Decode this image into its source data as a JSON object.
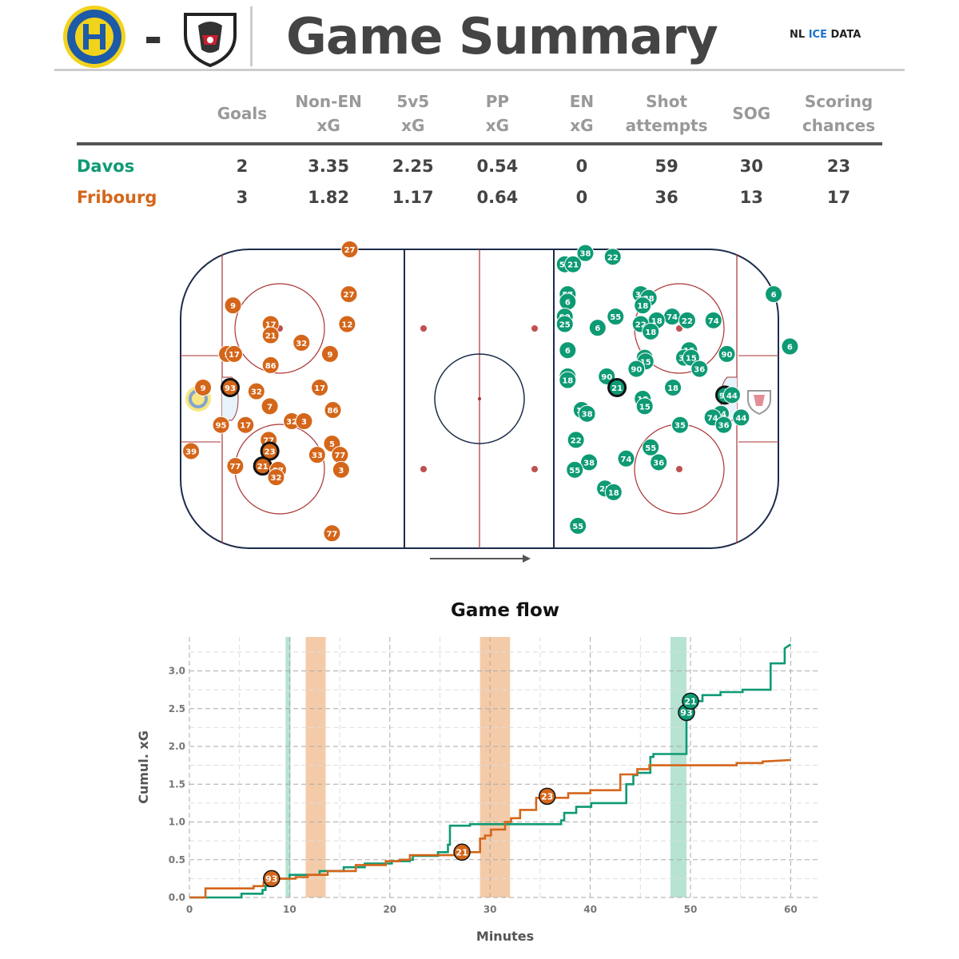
{
  "header": {
    "title": "Game Summary",
    "separator": "-",
    "brand_prefix": "NL ",
    "brand_highlight": "ICE",
    "brand_suffix": " DATA",
    "home_logo_icon": "davos-logo",
    "away_logo_icon": "fribourg-logo"
  },
  "colors": {
    "home": "#0e9a74",
    "away": "#d4661a",
    "home_band": "#b6e3d2",
    "away_band": "#f4cba9"
  },
  "stats": {
    "headers": [
      "",
      "Goals",
      "Non-EN\nxG",
      "5v5\nxG",
      "PP\nxG",
      "EN\nxG",
      "Shot\nattempts",
      "SOG",
      "Scoring\nchances"
    ],
    "rows": [
      {
        "team": "Davos",
        "values": [
          "2",
          "3.35",
          "2.25",
          "0.54",
          "0",
          "59",
          "30",
          "23"
        ]
      },
      {
        "team": "Fribourg",
        "values": [
          "3",
          "1.82",
          "1.17",
          "0.64",
          "0",
          "36",
          "13",
          "17"
        ]
      }
    ]
  },
  "rink": {
    "direction": "left-to-right",
    "away_shots": [
      {
        "n": "27",
        "x": -45.5,
        "y": -20.0
      },
      {
        "n": "27",
        "x": -45.8,
        "y": -14.0
      },
      {
        "n": "12",
        "x": -46.4,
        "y": -10.0
      },
      {
        "n": "9",
        "x": -86.4,
        "y": -12.5
      },
      {
        "n": "17",
        "x": -73.2,
        "y": -10.0
      },
      {
        "n": "21",
        "x": -73.2,
        "y": -8.5
      },
      {
        "n": "32",
        "x": -62.4,
        "y": -7.5
      },
      {
        "n": "9",
        "x": -88.5,
        "y": -6.0
      },
      {
        "n": "17",
        "x": -86.0,
        "y": -6.0
      },
      {
        "n": "9",
        "x": -52.4,
        "y": -6.0
      },
      {
        "n": "86",
        "x": -73.2,
        "y": -4.5
      },
      {
        "n": "17",
        "x": -56.0,
        "y": -1.5
      },
      {
        "n": "9",
        "x": -96.9,
        "y": -1.5
      },
      {
        "n": "93",
        "x": -87.4,
        "y": -1.5,
        "goal": true
      },
      {
        "n": "32",
        "x": -78.2,
        "y": -1.0
      },
      {
        "n": "7",
        "x": -73.5,
        "y": 1.0
      },
      {
        "n": "86",
        "x": -51.4,
        "y": 1.5
      },
      {
        "n": "32",
        "x": -65.8,
        "y": 3.0
      },
      {
        "n": "3",
        "x": -61.5,
        "y": 3.0
      },
      {
        "n": "95",
        "x": -90.6,
        "y": 3.5
      },
      {
        "n": "17",
        "x": -82.0,
        "y": 3.5
      },
      {
        "n": "77",
        "x": -73.9,
        "y": 5.5
      },
      {
        "n": "5",
        "x": -51.7,
        "y": 6.0
      },
      {
        "n": "23",
        "x": -73.5,
        "y": 7.0,
        "goal": true
      },
      {
        "n": "39",
        "x": -101.1,
        "y": 7.0
      },
      {
        "n": "33",
        "x": -56.9,
        "y": 7.5
      },
      {
        "n": "77",
        "x": -48.9,
        "y": 7.5
      },
      {
        "n": "21",
        "x": -76.0,
        "y": 9.0,
        "goal": true
      },
      {
        "n": "77",
        "x": -85.6,
        "y": 9.0
      },
      {
        "n": "97",
        "x": -70.6,
        "y": 9.5
      },
      {
        "n": "3",
        "x": -48.5,
        "y": 9.5
      },
      {
        "n": "32",
        "x": -71.3,
        "y": 10.5
      },
      {
        "n": "77",
        "x": -51.7,
        "y": 18.0
      }
    ],
    "home_shots": [
      {
        "n": "38",
        "x": 37.1,
        "y": -19.5
      },
      {
        "n": "22",
        "x": 46.7,
        "y": -19.0
      },
      {
        "n": "57",
        "x": 29.9,
        "y": -18.0
      },
      {
        "n": "21",
        "x": 32.8,
        "y": -18.0
      },
      {
        "n": "57",
        "x": 30.9,
        "y": -14.0
      },
      {
        "n": "6",
        "x": 30.9,
        "y": -13.0
      },
      {
        "n": "36",
        "x": 56.5,
        "y": -14.0
      },
      {
        "n": "38",
        "x": 59.3,
        "y": -13.5
      },
      {
        "n": "6",
        "x": 103.1,
        "y": -14.0
      },
      {
        "n": "18",
        "x": 57.2,
        "y": -12.5
      },
      {
        "n": "55",
        "x": 47.7,
        "y": -11.0
      },
      {
        "n": "74",
        "x": 67.5,
        "y": -11.0
      },
      {
        "n": "18",
        "x": 62.1,
        "y": -10.5
      },
      {
        "n": "25",
        "x": 72.8,
        "y": -10.5
      },
      {
        "n": "22",
        "x": 72.8,
        "y": -10.5
      },
      {
        "n": "74",
        "x": 82.0,
        "y": -10.5
      },
      {
        "n": "90",
        "x": 29.9,
        "y": -11.0
      },
      {
        "n": "25",
        "x": 29.9,
        "y": -10.0
      },
      {
        "n": "22",
        "x": 56.5,
        "y": -10.0
      },
      {
        "n": "6",
        "x": 41.4,
        "y": -9.5
      },
      {
        "n": "18",
        "x": 60.0,
        "y": -9.0
      },
      {
        "n": "15",
        "x": 73.5,
        "y": -6.5
      },
      {
        "n": "6",
        "x": 108.8,
        "y": -7.0
      },
      {
        "n": "38",
        "x": 71.7,
        "y": -5.5
      },
      {
        "n": "15",
        "x": 74.2,
        "y": -5.5
      },
      {
        "n": "90",
        "x": 86.7,
        "y": -6.0
      },
      {
        "n": "6",
        "x": 30.9,
        "y": -6.5
      },
      {
        "n": "15",
        "x": 57.9,
        "y": -5.5
      },
      {
        "n": "15",
        "x": 58.2,
        "y": -5.0
      },
      {
        "n": "90",
        "x": 55.0,
        "y": -4.0
      },
      {
        "n": "36",
        "x": 77.1,
        "y": -4.0
      },
      {
        "n": "6",
        "x": 30.9,
        "y": -3.0
      },
      {
        "n": "18",
        "x": 30.9,
        "y": -2.5
      },
      {
        "n": "90",
        "x": 44.6,
        "y": -3.0
      },
      {
        "n": "21",
        "x": 48.2,
        "y": -1.5,
        "goal": true
      },
      {
        "n": "18",
        "x": 67.8,
        "y": -1.5
      },
      {
        "n": "93",
        "x": 86.0,
        "y": -0.5,
        "goal": true
      },
      {
        "n": "44",
        "x": 88.5,
        "y": -0.5
      },
      {
        "n": "18",
        "x": 57.2,
        "y": 0.0
      },
      {
        "n": "15",
        "x": 57.9,
        "y": 1.0
      },
      {
        "n": "12",
        "x": 35.8,
        "y": 1.5
      },
      {
        "n": "38",
        "x": 37.7,
        "y": 2.0
      },
      {
        "n": "44",
        "x": 84.6,
        "y": 2.0
      },
      {
        "n": "44",
        "x": 91.7,
        "y": 2.5
      },
      {
        "n": "74",
        "x": 81.7,
        "y": 2.5
      },
      {
        "n": "35",
        "x": 70.3,
        "y": 3.5
      },
      {
        "n": "36",
        "x": 85.6,
        "y": 3.5
      },
      {
        "n": "22",
        "x": 33.8,
        "y": 5.5
      },
      {
        "n": "55",
        "x": 60.0,
        "y": 6.5
      },
      {
        "n": "74",
        "x": 51.4,
        "y": 8.0
      },
      {
        "n": "38",
        "x": 38.4,
        "y": 8.5
      },
      {
        "n": "36",
        "x": 62.8,
        "y": 8.5
      },
      {
        "n": "55",
        "x": 33.4,
        "y": 9.5
      },
      {
        "n": "25",
        "x": 44.0,
        "y": 12.0
      },
      {
        "n": "18",
        "x": 47.0,
        "y": 12.5
      },
      {
        "n": "55",
        "x": 34.5,
        "y": 17.0
      }
    ]
  },
  "chart_data": {
    "type": "line",
    "title": "Game flow",
    "xlabel": "Minutes",
    "ylabel": "Cumul. xG",
    "xlim": [
      0,
      63
    ],
    "ylim": [
      0,
      3.45
    ],
    "xticks": [
      0,
      10,
      20,
      30,
      40,
      50,
      60
    ],
    "yticks": [
      0.0,
      0.5,
      1.0,
      1.5,
      2.0,
      2.5,
      3.0
    ],
    "grid": true,
    "home_pp": [
      [
        9.6,
        10.1
      ],
      [
        48.0,
        49.6
      ]
    ],
    "away_pp": [
      [
        11.6,
        13.6
      ],
      [
        29.0,
        32.0
      ]
    ],
    "series": [
      {
        "team": "home",
        "points": [
          [
            0,
            0
          ],
          [
            5.2,
            0.0
          ],
          [
            5.2,
            0.05
          ],
          [
            7.3,
            0.05
          ],
          [
            7.3,
            0.1
          ],
          [
            7.6,
            0.1
          ],
          [
            7.6,
            0.15
          ],
          [
            7.9,
            0.15
          ],
          [
            7.9,
            0.2
          ],
          [
            8.2,
            0.2
          ],
          [
            8.2,
            0.25
          ],
          [
            10.0,
            0.25
          ],
          [
            10.0,
            0.3
          ],
          [
            13.0,
            0.3
          ],
          [
            13.0,
            0.35
          ],
          [
            15.4,
            0.35
          ],
          [
            15.4,
            0.4
          ],
          [
            17.5,
            0.4
          ],
          [
            17.5,
            0.45
          ],
          [
            20.2,
            0.45
          ],
          [
            20.2,
            0.48
          ],
          [
            22.0,
            0.48
          ],
          [
            22.0,
            0.5
          ],
          [
            22.3,
            0.5
          ],
          [
            22.3,
            0.55
          ],
          [
            24.8,
            0.55
          ],
          [
            24.8,
            0.6
          ],
          [
            25.8,
            0.6
          ],
          [
            25.8,
            0.7
          ],
          [
            26.0,
            0.7
          ],
          [
            26.0,
            0.95
          ],
          [
            28.0,
            0.95
          ],
          [
            28.0,
            0.97
          ],
          [
            37.1,
            0.97
          ],
          [
            37.1,
            1.02
          ],
          [
            37.4,
            1.02
          ],
          [
            37.4,
            1.12
          ],
          [
            38.6,
            1.12
          ],
          [
            38.6,
            1.2
          ],
          [
            40.1,
            1.2
          ],
          [
            40.1,
            1.25
          ],
          [
            43.6,
            1.25
          ],
          [
            43.6,
            1.5
          ],
          [
            44.3,
            1.5
          ],
          [
            44.3,
            1.62
          ],
          [
            44.7,
            1.62
          ],
          [
            44.7,
            1.65
          ],
          [
            46.0,
            1.65
          ],
          [
            46.0,
            1.86
          ],
          [
            46.3,
            1.86
          ],
          [
            46.3,
            1.9
          ],
          [
            49.6,
            1.9
          ],
          [
            49.6,
            2.45
          ],
          [
            50.0,
            2.45
          ],
          [
            50.0,
            2.6
          ],
          [
            51.2,
            2.6
          ],
          [
            51.2,
            2.68
          ],
          [
            53.0,
            2.68
          ],
          [
            53.0,
            2.72
          ],
          [
            55.2,
            2.72
          ],
          [
            55.2,
            2.75
          ],
          [
            58.0,
            2.75
          ],
          [
            58.0,
            3.1
          ],
          [
            59.4,
            3.1
          ],
          [
            59.4,
            3.3
          ],
          [
            60.0,
            3.35
          ]
        ]
      },
      {
        "team": "away",
        "points": [
          [
            0,
            0
          ],
          [
            1.6,
            0.0
          ],
          [
            1.6,
            0.12
          ],
          [
            6.4,
            0.12
          ],
          [
            6.4,
            0.15
          ],
          [
            7.4,
            0.15
          ],
          [
            7.4,
            0.2
          ],
          [
            8.2,
            0.2
          ],
          [
            8.2,
            0.25
          ],
          [
            10.6,
            0.25
          ],
          [
            10.6,
            0.27
          ],
          [
            11.8,
            0.27
          ],
          [
            11.8,
            0.3
          ],
          [
            13.8,
            0.3
          ],
          [
            13.8,
            0.35
          ],
          [
            16.6,
            0.35
          ],
          [
            16.6,
            0.43
          ],
          [
            19.6,
            0.43
          ],
          [
            19.6,
            0.48
          ],
          [
            21.0,
            0.48
          ],
          [
            21.0,
            0.5
          ],
          [
            22.0,
            0.5
          ],
          [
            22.0,
            0.56
          ],
          [
            27.7,
            0.56
          ],
          [
            27.7,
            0.6
          ],
          [
            29.0,
            0.6
          ],
          [
            29.0,
            0.78
          ],
          [
            29.5,
            0.78
          ],
          [
            29.5,
            0.82
          ],
          [
            30.1,
            0.82
          ],
          [
            30.1,
            0.9
          ],
          [
            31.5,
            0.9
          ],
          [
            31.5,
            1.0
          ],
          [
            32.1,
            1.0
          ],
          [
            32.1,
            1.05
          ],
          [
            33.0,
            1.05
          ],
          [
            33.0,
            1.16
          ],
          [
            34.6,
            1.16
          ],
          [
            34.6,
            1.32
          ],
          [
            37.8,
            1.32
          ],
          [
            37.8,
            1.38
          ],
          [
            40.0,
            1.38
          ],
          [
            40.0,
            1.42
          ],
          [
            43.0,
            1.42
          ],
          [
            43.0,
            1.63
          ],
          [
            44.7,
            1.63
          ],
          [
            44.7,
            1.7
          ],
          [
            45.9,
            1.7
          ],
          [
            45.9,
            1.75
          ],
          [
            54.6,
            1.75
          ],
          [
            54.6,
            1.78
          ],
          [
            57.2,
            1.78
          ],
          [
            57.2,
            1.8
          ],
          [
            60.0,
            1.82
          ]
        ]
      }
    ],
    "goal_markers": [
      {
        "team": "away",
        "n": "93",
        "x": 8.2,
        "y": 0.25
      },
      {
        "team": "away",
        "n": "21",
        "x": 27.2,
        "y": 0.6
      },
      {
        "team": "away",
        "n": "23",
        "x": 35.7,
        "y": 1.34
      },
      {
        "team": "home",
        "n": "93",
        "x": 49.6,
        "y": 2.45
      },
      {
        "team": "home",
        "n": "21",
        "x": 50.0,
        "y": 2.6
      }
    ]
  }
}
